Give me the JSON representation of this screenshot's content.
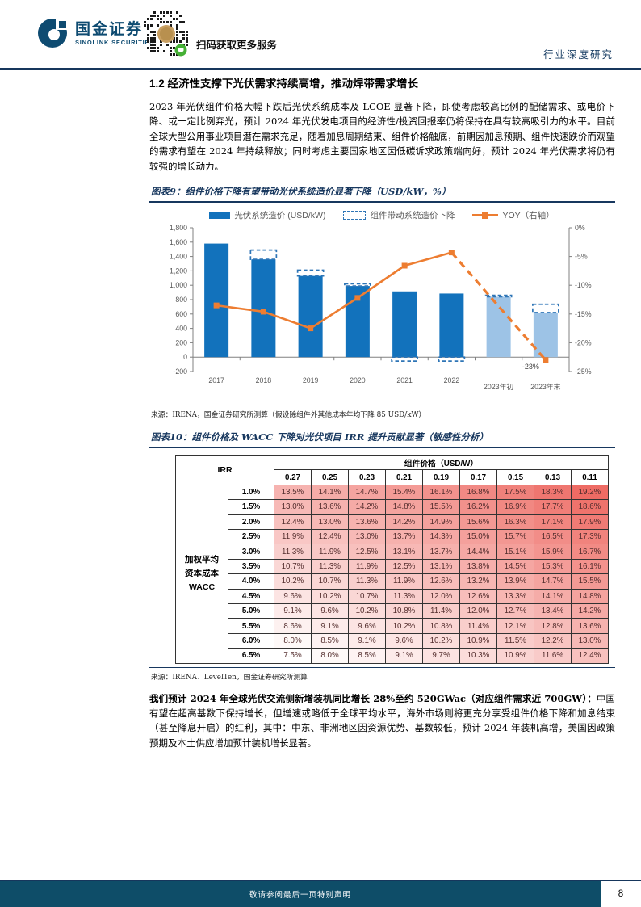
{
  "header": {
    "brand_cn": "国金证券",
    "brand_en": "SINOLINK SECURITIES",
    "qr_caption": "扫码获取更多服务",
    "report_type": "行业深度研究"
  },
  "section": {
    "heading": "1.2 经济性支撑下光伏需求持续高增，推动焊带需求增长",
    "para1": "2023 年光伏组件价格大幅下跌后光伏系统成本及 LCOE 显著下降，即使考虑较高比例的配储需求、或电价下降、或一定比例弃光，预计 2024 年光伏发电项目的经济性/投资回报率仍将保持在具有较高吸引力的水平。目前全球大型公用事业项目潜在需求充足，随着加息周期结束、组件价格触底，前期因加息预期、组件快速跌价而观望的需求有望在 2024 年持续释放；同时考虑主要国家地区因低碳诉求政策端向好，预计 2024 年光伏需求将仍有较强的增长动力。",
    "para2_bold": "我们预计 2024 年全球光伏交流侧新增装机同比增长 28%至约 520GWac（对应组件需求近 700GW）：",
    "para2_rest": "中国有望在超高基数下保持增长，但增速或略低于全球平均水平，海外市场则将更充分享受组件价格下降和加息结束（甚至降息开启）的红利，其中：中东、非洲地区因资源优势、基数较低，预计 2024 年装机高增，美国因政策预期及本土供应增加预计装机增长显著。"
  },
  "figure9": {
    "title": "图表9：组件价格下降有望带动光伏系统造价显著下降（USD/kW，%）",
    "source": "来源：IRENA，国金证券研究所测算（假设除组件外其他成本年均下降 85 USD/kW）"
  },
  "figure10": {
    "title": "图表10：组件价格及 WACC 下降对光伏项目 IRR 提升贡献显著（敏感性分析）",
    "source": "来源：IRENA、LevelTen，国金证券研究所测算"
  },
  "chart_data": [
    {
      "type": "bar",
      "title": "组件价格下降有望带动光伏系统造价显著下降（USD/kW，%）",
      "categories": [
        "2017",
        "2018",
        "2019",
        "2020",
        "2021",
        "2022",
        "2023年初",
        "2023年末"
      ],
      "series": [
        {
          "name": "光伏系统造价 (USD/kW)",
          "type": "bar",
          "values": [
            1580,
            1360,
            1130,
            990,
            915,
            885,
            840,
            620
          ]
        },
        {
          "name": "组件带动系统造价下降",
          "type": "dashed-outline",
          "ranges": [
            null,
            [
              1360,
              1490
            ],
            [
              1130,
              1210
            ],
            [
              990,
              1020
            ],
            [
              0,
              -55
            ],
            [
              0,
              -55
            ],
            [
              840,
              860
            ],
            [
              620,
              735
            ]
          ]
        },
        {
          "name": "YOY（右轴）",
          "type": "line",
          "axis": "right",
          "values": [
            -13.5,
            -14.6,
            -17.5,
            -12.2,
            -6.6,
            -4.3,
            null,
            -23.0
          ],
          "dashed_from_index": 5,
          "end_label": "-23%"
        }
      ],
      "left_axis": {
        "min": -200,
        "max": 1800,
        "step": 200
      },
      "right_axis": {
        "min": -25,
        "max": 0,
        "step": 5,
        "suffix": "%"
      },
      "colors": {
        "bar": "#1272BC",
        "bar_light": "#9DC3E6",
        "light_from_index": 6,
        "dashed": "#2E75B6",
        "line": "#ED7D31",
        "axis_text": "#595959",
        "axis_line": "#808080"
      }
    },
    {
      "type": "table",
      "title": "组件价格及 WACC 下降对光伏项目 IRR 提升贡献显著（敏感性分析）",
      "corner_label": "IRR",
      "col_group_label": "组件价格（USD/W）",
      "row_group_lines": [
        "加权平均",
        "资本成本",
        "WACC"
      ],
      "col_headers": [
        "0.27",
        "0.25",
        "0.23",
        "0.21",
        "0.19",
        "0.17",
        "0.15",
        "0.13",
        "0.11"
      ],
      "row_headers": [
        "1.0%",
        "1.5%",
        "2.0%",
        "2.5%",
        "3.0%",
        "3.5%",
        "4.0%",
        "4.5%",
        "5.0%",
        "5.5%",
        "6.0%",
        "6.5%"
      ],
      "rows": [
        [
          13.5,
          14.1,
          14.7,
          15.4,
          16.1,
          16.8,
          17.5,
          18.3,
          19.2
        ],
        [
          13.0,
          13.6,
          14.2,
          14.8,
          15.5,
          16.2,
          16.9,
          17.7,
          18.6
        ],
        [
          12.4,
          13.0,
          13.6,
          14.2,
          14.9,
          15.6,
          16.3,
          17.1,
          17.9
        ],
        [
          11.9,
          12.4,
          13.0,
          13.7,
          14.3,
          15.0,
          15.7,
          16.5,
          17.3
        ],
        [
          11.3,
          11.9,
          12.5,
          13.1,
          13.7,
          14.4,
          15.1,
          15.9,
          16.7
        ],
        [
          10.7,
          11.3,
          11.9,
          12.5,
          13.1,
          13.8,
          14.5,
          15.3,
          16.1
        ],
        [
          10.2,
          10.7,
          11.3,
          11.9,
          12.6,
          13.2,
          13.9,
          14.7,
          15.5
        ],
        [
          9.6,
          10.2,
          10.7,
          11.3,
          12.0,
          12.6,
          13.3,
          14.1,
          14.8
        ],
        [
          9.1,
          9.6,
          10.2,
          10.8,
          11.4,
          12.0,
          12.7,
          13.4,
          14.2
        ],
        [
          8.6,
          9.1,
          9.6,
          10.2,
          10.8,
          11.4,
          12.1,
          12.8,
          13.6
        ],
        [
          8.0,
          8.5,
          9.1,
          9.6,
          10.2,
          10.9,
          11.5,
          12.2,
          13.0
        ],
        [
          7.5,
          8.0,
          8.5,
          9.1,
          9.7,
          10.3,
          10.9,
          11.6,
          12.4
        ]
      ],
      "heat": {
        "min": 7.5,
        "max": 19.2,
        "min_color": "#FFFFFF",
        "max_color": "#EE6B64"
      }
    }
  ],
  "footer": {
    "disclaimer": "敬请参阅最后一页特别声明",
    "page_number": "8"
  }
}
